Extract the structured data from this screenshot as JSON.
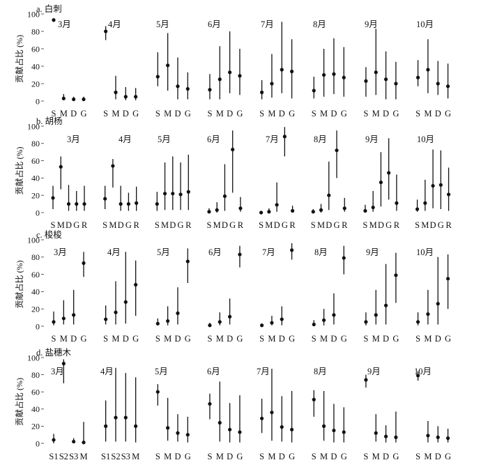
{
  "chart_data": [
    {
      "type": "scatter",
      "title": "a. 白刺",
      "ylabel": "贡献占比 (%)",
      "ylim": [
        0,
        100
      ],
      "yticks": [
        0,
        20,
        40,
        60,
        80,
        100
      ],
      "color": "#111111",
      "panels": [
        {
          "label": "3月",
          "categories": [
            "S",
            "M",
            "D",
            "G"
          ],
          "values": [
            93,
            3,
            2,
            2
          ],
          "lower": [
            91,
            1,
            1,
            1
          ],
          "upper": [
            95,
            8,
            5,
            5
          ]
        },
        {
          "label": "4月",
          "categories": [
            "S",
            "M",
            "D",
            "G"
          ],
          "values": [
            80,
            10,
            5,
            5
          ],
          "lower": [
            70,
            2,
            1,
            1
          ],
          "upper": [
            86,
            29,
            16,
            15
          ]
        },
        {
          "label": "5月",
          "categories": [
            "S",
            "M",
            "D",
            "G"
          ],
          "values": [
            28,
            41,
            17,
            14
          ],
          "lower": [
            17,
            12,
            2,
            2
          ],
          "upper": [
            56,
            78,
            50,
            33
          ]
        },
        {
          "label": "6月",
          "categories": [
            "S",
            "M",
            "D",
            "G"
          ],
          "values": [
            13,
            25,
            33,
            29
          ],
          "lower": [
            2,
            2,
            9,
            7
          ],
          "upper": [
            31,
            63,
            80,
            60
          ]
        },
        {
          "label": "7月",
          "categories": [
            "S",
            "M",
            "D",
            "G"
          ],
          "values": [
            10,
            20,
            36,
            34
          ],
          "lower": [
            2,
            4,
            9,
            3
          ],
          "upper": [
            24,
            54,
            91,
            71
          ]
        },
        {
          "label": "8月",
          "categories": [
            "S",
            "M",
            "D",
            "G"
          ],
          "values": [
            12,
            30,
            31,
            27
          ],
          "lower": [
            3,
            5,
            8,
            5
          ],
          "upper": [
            28,
            60,
            72,
            62
          ]
        },
        {
          "label": "9月",
          "categories": [
            "S",
            "M",
            "D",
            "G"
          ],
          "values": [
            23,
            33,
            25,
            20
          ],
          "lower": [
            5,
            7,
            2,
            2
          ],
          "upper": [
            39,
            83,
            57,
            45
          ]
        },
        {
          "label": "10月",
          "categories": [
            "S",
            "M",
            "D",
            "G"
          ],
          "values": [
            27,
            36,
            20,
            17
          ],
          "lower": [
            17,
            9,
            7,
            3
          ],
          "upper": [
            47,
            71,
            46,
            43
          ]
        }
      ]
    },
    {
      "type": "scatter",
      "title": "b. 胡杨",
      "ylabel": "贡献占比 (%)",
      "ylim": [
        0,
        100
      ],
      "yticks": [
        0,
        20,
        40,
        60,
        80,
        100
      ],
      "color": "#111111",
      "panels": [
        {
          "label": "3月",
          "categories": [
            "S",
            "M",
            "D",
            "G",
            "R"
          ],
          "values": [
            17,
            53,
            10,
            10,
            10
          ],
          "lower": [
            4,
            27,
            2,
            2,
            2
          ],
          "upper": [
            31,
            65,
            32,
            25,
            31
          ]
        },
        {
          "label": "4月",
          "categories": [
            "S",
            "M",
            "D",
            "G",
            "R"
          ],
          "values": [
            16,
            54,
            10,
            10,
            11
          ],
          "lower": [
            4,
            29,
            2,
            2,
            2
          ],
          "upper": [
            31,
            62,
            31,
            23,
            30
          ]
        },
        {
          "label": "5月",
          "categories": [
            "S",
            "M",
            "D",
            "G",
            "R"
          ],
          "values": [
            10,
            22,
            22,
            21,
            24
          ],
          "lower": [
            2,
            3,
            3,
            3,
            3
          ],
          "upper": [
            24,
            58,
            65,
            58,
            67
          ]
        },
        {
          "label": "6月",
          "categories": [
            "S",
            "M",
            "D",
            "G",
            "R"
          ],
          "values": [
            1,
            3,
            19,
            73,
            5
          ],
          "lower": [
            0,
            0,
            2,
            23,
            1
          ],
          "upper": [
            5,
            12,
            56,
            95,
            18
          ]
        },
        {
          "label": "7月",
          "categories": [
            "S",
            "M",
            "D",
            "G",
            "R"
          ],
          "values": [
            0,
            1,
            9,
            88,
            2
          ],
          "lower": [
            0,
            0,
            1,
            65,
            0
          ],
          "upper": [
            2,
            5,
            35,
            99,
            8
          ]
        },
        {
          "label": "8月",
          "categories": [
            "S",
            "M",
            "D",
            "G",
            "R"
          ],
          "values": [
            1,
            3,
            20,
            72,
            5
          ],
          "lower": [
            0,
            0,
            3,
            40,
            1
          ],
          "upper": [
            4,
            10,
            59,
            95,
            17
          ]
        },
        {
          "label": "9月",
          "categories": [
            "S",
            "M",
            "D",
            "G",
            "R"
          ],
          "values": [
            2,
            6,
            35,
            46,
            11
          ],
          "lower": [
            0,
            1,
            7,
            15,
            2
          ],
          "upper": [
            9,
            25,
            70,
            86,
            44
          ]
        },
        {
          "label": "10月",
          "categories": [
            "S",
            "M",
            "D",
            "G",
            "R"
          ],
          "values": [
            4,
            11,
            31,
            32,
            21
          ],
          "lower": [
            1,
            2,
            5,
            4,
            2
          ],
          "upper": [
            15,
            38,
            73,
            72,
            52
          ]
        }
      ]
    },
    {
      "type": "scatter",
      "title": "c. 梭梭",
      "ylabel": "贡献占比 (%)",
      "ylim": [
        0,
        100
      ],
      "yticks": [
        0,
        20,
        40,
        60,
        80,
        100
      ],
      "color": "#111111",
      "panels": [
        {
          "label": "3月",
          "categories": [
            "S",
            "M",
            "D",
            "G"
          ],
          "values": [
            5,
            9,
            13,
            73
          ],
          "lower": [
            1,
            2,
            2,
            57
          ],
          "upper": [
            17,
            30,
            42,
            86
          ]
        },
        {
          "label": "4月",
          "categories": [
            "S",
            "M",
            "D",
            "G"
          ],
          "values": [
            8,
            16,
            28,
            48
          ],
          "lower": [
            2,
            2,
            3,
            12
          ],
          "upper": [
            24,
            52,
            86,
            76
          ]
        },
        {
          "label": "5月",
          "categories": [
            "S",
            "M",
            "D",
            "G"
          ],
          "values": [
            3,
            6,
            15,
            75
          ],
          "lower": [
            1,
            1,
            2,
            50
          ],
          "upper": [
            9,
            23,
            45,
            90
          ]
        },
        {
          "label": "6月",
          "categories": [
            "S",
            "M",
            "D",
            "G"
          ],
          "values": [
            1,
            5,
            11,
            83
          ],
          "lower": [
            0,
            1,
            2,
            68
          ],
          "upper": [
            4,
            16,
            32,
            93
          ]
        },
        {
          "label": "7月",
          "categories": [
            "S",
            "M",
            "D",
            "G"
          ],
          "values": [
            1,
            4,
            8,
            88
          ],
          "lower": [
            0,
            1,
            1,
            77
          ],
          "upper": [
            3,
            12,
            23,
            96
          ]
        },
        {
          "label": "8月",
          "categories": [
            "S",
            "M",
            "D",
            "G"
          ],
          "values": [
            2,
            7,
            13,
            79
          ],
          "lower": [
            0,
            1,
            2,
            60
          ],
          "upper": [
            7,
            20,
            38,
            93
          ]
        },
        {
          "label": "9月",
          "categories": [
            "S",
            "M",
            "D",
            "G"
          ],
          "values": [
            5,
            13,
            24,
            59
          ],
          "lower": [
            1,
            2,
            2,
            27
          ],
          "upper": [
            16,
            42,
            72,
            85
          ]
        },
        {
          "label": "10月",
          "categories": [
            "S",
            "M",
            "D",
            "G"
          ],
          "values": [
            5,
            14,
            26,
            55
          ],
          "lower": [
            1,
            2,
            2,
            20
          ],
          "upper": [
            16,
            42,
            80,
            83
          ]
        }
      ]
    },
    {
      "type": "scatter",
      "title": "d. 盐穗木",
      "ylabel": "贡献占比 (%)",
      "ylim": [
        0,
        100
      ],
      "yticks": [
        0,
        20,
        40,
        60,
        80,
        100
      ],
      "color": "#111111",
      "panels": [
        {
          "label": "3月",
          "categories": [
            "S1",
            "S2",
            "S3",
            "M"
          ],
          "values": [
            4,
            93,
            2,
            1
          ],
          "lower": [
            0,
            70,
            0,
            0
          ],
          "upper": [
            11,
            98,
            6,
            25
          ]
        },
        {
          "label": "4月",
          "categories": [
            "S1",
            "S2",
            "S3",
            "M"
          ],
          "values": [
            20,
            30,
            30,
            20
          ],
          "lower": [
            2,
            2,
            2,
            1
          ],
          "upper": [
            50,
            88,
            82,
            77
          ]
        },
        {
          "label": "5月",
          "categories": [
            "S",
            "M",
            "D",
            "G"
          ],
          "values": [
            60,
            18,
            12,
            10
          ],
          "lower": [
            44,
            3,
            2,
            1
          ],
          "upper": [
            69,
            53,
            34,
            31
          ]
        },
        {
          "label": "6月",
          "categories": [
            "S",
            "M",
            "D",
            "G"
          ],
          "values": [
            46,
            24,
            16,
            13
          ],
          "lower": [
            28,
            2,
            1,
            1
          ],
          "upper": [
            58,
            72,
            47,
            56
          ]
        },
        {
          "label": "7月",
          "categories": [
            "S",
            "M",
            "D",
            "G"
          ],
          "values": [
            29,
            36,
            19,
            16
          ],
          "lower": [
            12,
            3,
            2,
            1
          ],
          "upper": [
            52,
            87,
            55,
            61
          ]
        },
        {
          "label": "8月",
          "categories": [
            "S",
            "M",
            "D",
            "G"
          ],
          "values": [
            51,
            20,
            15,
            13
          ],
          "lower": [
            31,
            3,
            1,
            1
          ],
          "upper": [
            62,
            61,
            46,
            42
          ]
        },
        {
          "label": "9月",
          "categories": [
            "S",
            "M",
            "D",
            "G"
          ],
          "values": [
            74,
            12,
            8,
            7
          ],
          "lower": [
            65,
            2,
            1,
            1
          ],
          "upper": [
            80,
            34,
            21,
            37
          ]
        },
        {
          "label": "10月",
          "categories": [
            "S",
            "M",
            "D",
            "G"
          ],
          "values": [
            79,
            9,
            7,
            6
          ],
          "lower": [
            73,
            1,
            1,
            1
          ],
          "upper": [
            84,
            26,
            20,
            17
          ]
        }
      ]
    }
  ]
}
